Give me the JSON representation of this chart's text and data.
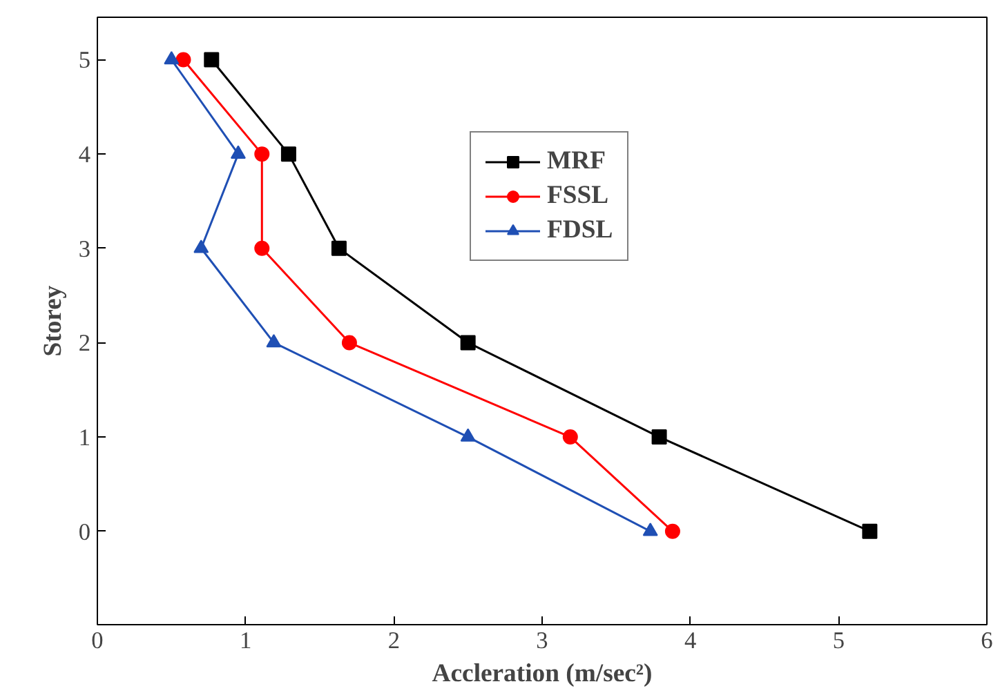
{
  "chart_data": {
    "type": "line",
    "xlabel": "Accleration (m/sec²)",
    "ylabel": "Storey",
    "xlim": [
      0,
      6
    ],
    "ylim": [
      -0.99,
      5.45
    ],
    "xticks": [
      0,
      1,
      2,
      3,
      4,
      5,
      6
    ],
    "yticks": [
      0,
      1,
      2,
      3,
      4,
      5
    ],
    "grid": false,
    "legend": "top right",
    "line_style": "solid",
    "series": [
      {
        "name": "MRF",
        "color": "#000000",
        "marker": "square",
        "x": [
          0.77,
          1.29,
          1.63,
          2.5,
          3.79,
          5.21
        ],
        "values": [
          5,
          4,
          3,
          2,
          1,
          0
        ]
      },
      {
        "name": "FSSL",
        "color": "#ff0000",
        "marker": "circle",
        "x": [
          0.58,
          1.11,
          1.11,
          1.7,
          3.19,
          3.88
        ],
        "values": [
          5,
          4,
          3,
          2,
          1,
          0
        ]
      },
      {
        "name": "FDSL",
        "color": "#1f4fb4",
        "marker": "triangle",
        "x": [
          0.5,
          0.95,
          0.7,
          1.19,
          2.5,
          3.73
        ],
        "values": [
          5,
          4,
          3,
          2,
          1,
          0
        ]
      }
    ]
  }
}
